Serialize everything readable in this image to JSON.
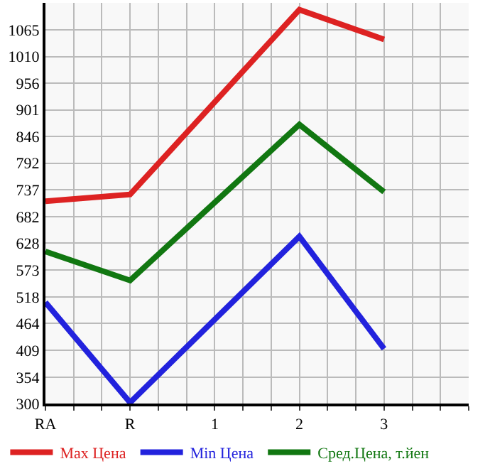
{
  "chart_data": {
    "type": "line",
    "categories": [
      "RA",
      "R",
      "1",
      "2",
      "3"
    ],
    "series": [
      {
        "name": "Max Цена",
        "color": "#dd2222",
        "values": [
          714,
          728,
          null,
          1106,
          1045
        ]
      },
      {
        "name": "Min Цена",
        "color": "#2222dd",
        "values": [
          507,
          302,
          null,
          642,
          412
        ]
      },
      {
        "name": "Сред.Цена, т.йен",
        "color": "#117711",
        "values": [
          611,
          552,
          null,
          871,
          733
        ]
      }
    ],
    "ylim": [
      300,
      1120
    ],
    "yticks": [
      300,
      354,
      409,
      464,
      518,
      573,
      628,
      682,
      737,
      792,
      846,
      901,
      956,
      1010,
      1065
    ],
    "grid": true,
    "legend": "bottom",
    "marker": "none",
    "line_style": "solid"
  }
}
